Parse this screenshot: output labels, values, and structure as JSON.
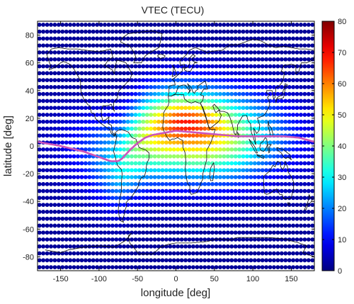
{
  "chart_data": {
    "type": "heatmap",
    "title": "VTEC (TECU)",
    "xlabel": "longitude [deg]",
    "ylabel": "latitude [deg]",
    "xlim": [
      -180,
      180
    ],
    "ylim": [
      -90,
      90
    ],
    "x_ticks": [
      -150,
      -100,
      -50,
      0,
      50,
      100,
      150
    ],
    "y_ticks": [
      80,
      60,
      40,
      20,
      0,
      -20,
      -40,
      -60,
      -80
    ],
    "grid": false,
    "colorbar": {
      "range": [
        0,
        80
      ],
      "ticks": [
        0,
        10,
        20,
        30,
        40,
        50,
        60,
        70,
        80
      ],
      "colormap": "jet"
    },
    "grid_spacing_deg": {
      "lon": 5,
      "lat": 5
    },
    "peak": {
      "lon": 15,
      "lat": 20,
      "value": 72
    },
    "background_value": 2,
    "magnetic_equator": {
      "color": "#cc55bb",
      "lon": [
        -180,
        -150,
        -120,
        -100,
        -85,
        -75,
        -70,
        -60,
        -50,
        -40,
        -30,
        -10,
        0,
        20,
        40,
        60,
        80,
        100,
        120,
        140,
        160,
        180
      ],
      "lat": [
        3,
        0,
        -4,
        -8,
        -11,
        -11,
        -9,
        -3,
        2,
        6,
        8,
        10,
        11,
        10,
        9,
        8,
        7,
        7,
        7,
        7,
        6,
        3
      ]
    },
    "coastlines_color": "#111111"
  }
}
